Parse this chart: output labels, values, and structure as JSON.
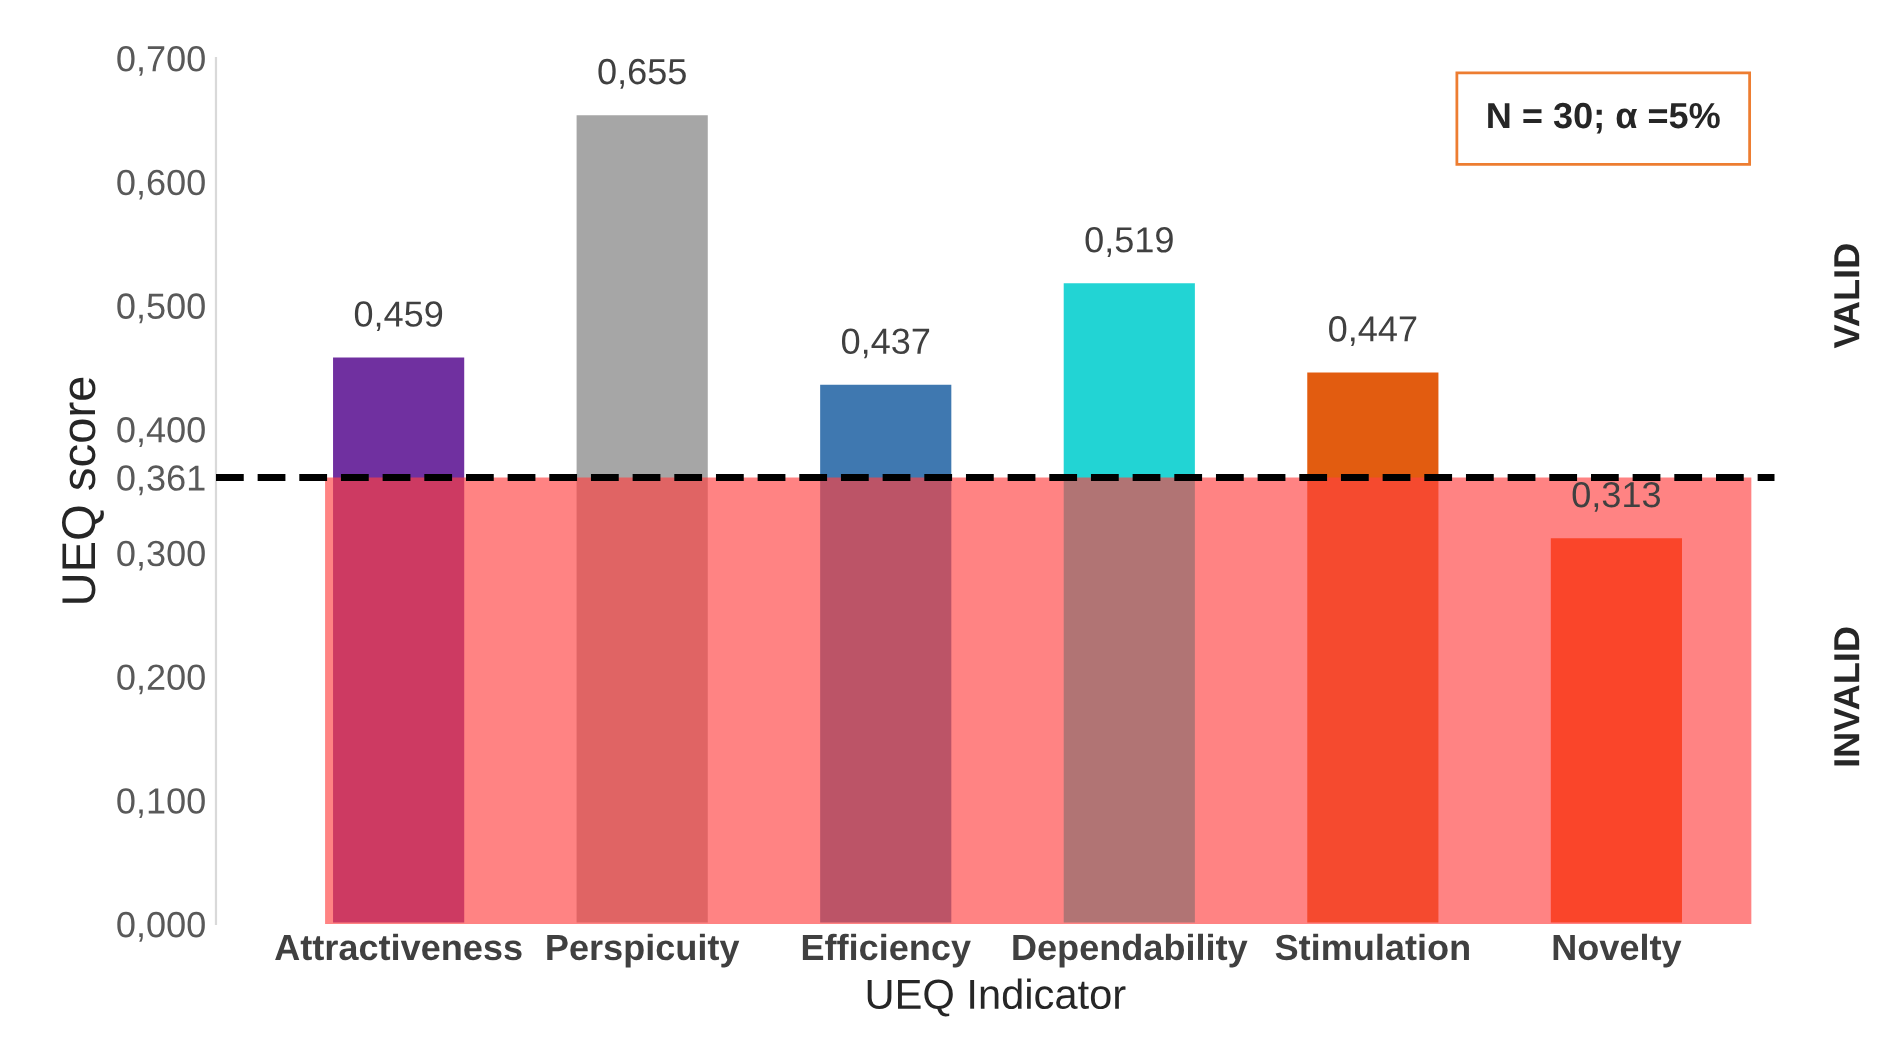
{
  "chart_data": {
    "type": "bar",
    "xlabel": "UEQ Indicator",
    "ylabel": "UEQ score",
    "categories": [
      "Attractiveness",
      "Perspicuity",
      "Efficiency",
      "Dependability",
      "Stimulation",
      "Novelty"
    ],
    "values": [
      0.459,
      0.655,
      0.437,
      0.519,
      0.447,
      0.313
    ],
    "colors": [
      "#7030a0",
      "#a6a6a6",
      "#3f78b0",
      "#22d4d4",
      "#e25c10",
      "#f04e00"
    ],
    "value_labels": [
      "0,459",
      "0,655",
      "0,437",
      "0,519",
      "0,447",
      "0,313"
    ],
    "ylim": [
      0,
      0.7
    ],
    "yticks": [
      {
        "value": 0,
        "label": "0,000"
      },
      {
        "value": 0.1,
        "label": "0,100"
      },
      {
        "value": 0.2,
        "label": "0,200"
      },
      {
        "value": 0.3,
        "label": "0,300"
      },
      {
        "value": 0.361,
        "label": "0,361"
      },
      {
        "value": 0.4,
        "label": "0,400"
      },
      {
        "value": 0.5,
        "label": "0,500"
      },
      {
        "value": 0.6,
        "label": "0,600"
      },
      {
        "value": 0.7,
        "label": "0,700"
      }
    ],
    "ref_lines": [
      {
        "axis": "y",
        "value": 0.361,
        "color": "#000000",
        "line_style": "dashed"
      }
    ],
    "bands": [
      {
        "axis": "y",
        "from": 0,
        "to": 0.361,
        "color": "#ff4040"
      }
    ],
    "annotations": [
      "N = 30; α =5%",
      "VALID",
      "INVALID"
    ],
    "grid": false,
    "legend": false
  }
}
